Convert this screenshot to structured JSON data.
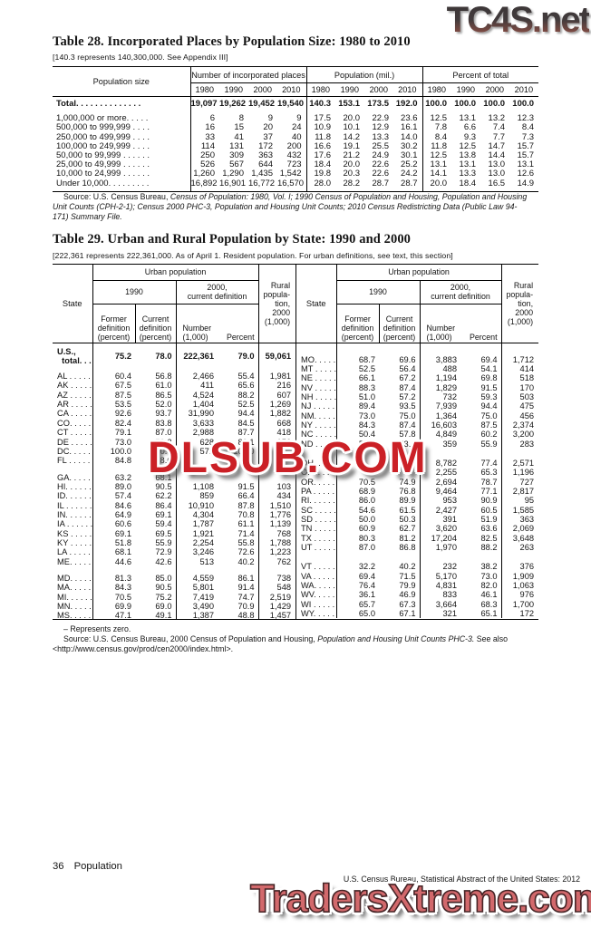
{
  "watermarks": {
    "top_right": "TC4S.net",
    "middle": "DLSUB.COM",
    "bottom": "TradersXtreme.com",
    "middle_color": "#cb2026",
    "bottom_color": "#d2696c"
  },
  "table28": {
    "title": "Table 28. Incorporated Places by Population Size: 1980 to 2010",
    "note": "[140.3 represents 140,300,000. See Appendix III]",
    "row_header": "Population size",
    "groups": [
      "Number of incorporated places",
      "Population (mil.)",
      "Percent of total"
    ],
    "years": [
      "1980",
      "1990",
      "2000",
      "2010"
    ],
    "total_rows": [
      [
        "Total. . . . . . . . . . . . . .",
        "19,097",
        "19,262",
        "19,452",
        "19,540",
        "140.3",
        "153.1",
        "173.5",
        "192.0",
        "100.0",
        "100.0",
        "100.0",
        "100.0"
      ]
    ],
    "rows": [
      [
        "1,000,000 or more. . . . .",
        "6",
        "8",
        "9",
        "9",
        "17.5",
        "20.0",
        "22.9",
        "23.6",
        "12.5",
        "13.1",
        "13.2",
        "12.3"
      ],
      [
        "500,000 to 999,999 . . . .",
        "16",
        "15",
        "20",
        "24",
        "10.9",
        "10.1",
        "12.9",
        "16.1",
        "7.8",
        "6.6",
        "7.4",
        "8.4"
      ],
      [
        "250,000 to 499,999 . . . .",
        "33",
        "41",
        "37",
        "40",
        "11.8",
        "14.2",
        "13.3",
        "14.0",
        "8.4",
        "9.3",
        "7.7",
        "7.3"
      ],
      [
        "100,000 to 249,999 . . . .",
        "114",
        "131",
        "172",
        "200",
        "16.6",
        "19.1",
        "25.5",
        "30.2",
        "11.8",
        "12.5",
        "14.7",
        "15.7"
      ],
      [
        "50,000 to 99,999 . . . . . .",
        "250",
        "309",
        "363",
        "432",
        "17.6",
        "21.2",
        "24.9",
        "30.1",
        "12.5",
        "13.8",
        "14.4",
        "15.7"
      ],
      [
        "25,000 to 49,999 . . . . . .",
        "526",
        "567",
        "644",
        "723",
        "18.4",
        "20.0",
        "22.6",
        "25.2",
        "13.1",
        "13.1",
        "13.0",
        "13.1"
      ],
      [
        "10,000 to 24,999 . . . . . .",
        "1,260",
        "1,290",
        "1,435",
        "1,542",
        "19.8",
        "20.3",
        "22.6",
        "24.2",
        "14.1",
        "13.3",
        "13.0",
        "12.6"
      ],
      [
        "Under 10,000. . . . . . . . .",
        "16,892",
        "16,901",
        "16,772",
        "16,570",
        "28.0",
        "28.2",
        "28.7",
        "28.7",
        "20.0",
        "18.4",
        "16.5",
        "14.9"
      ]
    ],
    "source_prefix": "Source: U.S. Census Bureau, ",
    "source_italic": "Census of Population: 1980, Vol. I; 1990 Census of Population and Housing, Population and Housing Unit Counts (CPH-2-1); Census 2000 PHC-3, Population and Housing Unit Counts; 2010 Census Redistricting Data (Public Law 94-171) Summary File."
  },
  "table29": {
    "title": "Table 29. Urban and Rural Population by State: 1990 and 2000",
    "note": "[222,361 represents 222,361,000. As of April 1. Resident population. For urban definitions, see text, this section]",
    "header": {
      "state": "State",
      "urban": "Urban population",
      "y1990": "1990",
      "y2000": "2000,\ncurrent definition",
      "former": "Former\ndefinition\n(percent)",
      "current": "Current\ndefinition\n(percent)",
      "number": "Number\n(1,000)",
      "percent": "Percent",
      "rural": "Rural\npopula-\ntion,\n2000\n(1,000)"
    },
    "us_total_label": "U.S.,\n  total. . .",
    "us_total": [
      "75.2",
      "78.0",
      "222,361",
      "79.0",
      "59,061"
    ],
    "left_g1": [
      [
        "AL . . . . . .",
        "60.4",
        "56.8",
        "2,466",
        "55.4",
        "1,981"
      ],
      [
        "AK . . . . . .",
        "67.5",
        "61.0",
        "411",
        "65.6",
        "216"
      ],
      [
        "AZ . . . . . .",
        "87.5",
        "86.5",
        "4,524",
        "88.2",
        "607"
      ],
      [
        "AR . . . . . .",
        "53.5",
        "52.0",
        "1,404",
        "52.5",
        "1,269"
      ],
      [
        "CA . . . . . .",
        "92.6",
        "93.7",
        "31,990",
        "94.4",
        "1,882"
      ],
      [
        "CO. . . . . .",
        "82.4",
        "83.8",
        "3,633",
        "84.5",
        "668"
      ],
      [
        "CT . . . . . .",
        "79.1",
        "87.0",
        "2,988",
        "87.7",
        "418"
      ],
      [
        "DE . . . . . .",
        "73.0",
        "79.2",
        "628",
        "80.1",
        "156"
      ],
      [
        "DC. . . . . .",
        "100.0",
        "100.0",
        "572",
        "100.0",
        "–"
      ],
      [
        "FL . . . . . .",
        "84.8",
        "88.0",
        "",
        "",
        ""
      ]
    ],
    "left_g2": [
      [
        "GA. . . . . .",
        "63.2",
        "68.1",
        "",
        "",
        ""
      ],
      [
        "HI. . . . . . .",
        "89.0",
        "90.5",
        "1,108",
        "91.5",
        "103"
      ],
      [
        "ID. . . . . . .",
        "57.4",
        "62.2",
        "859",
        "66.4",
        "434"
      ],
      [
        "IL . . . . . . .",
        "84.6",
        "86.4",
        "10,910",
        "87.8",
        "1,510"
      ],
      [
        "IN. . . . . . .",
        "64.9",
        "69.1",
        "4,304",
        "70.8",
        "1,776"
      ],
      [
        "IA . . . . . .",
        "60.6",
        "59.4",
        "1,787",
        "61.1",
        "1,139"
      ],
      [
        "KS . . . . . .",
        "69.1",
        "69.5",
        "1,921",
        "71.4",
        "768"
      ],
      [
        "KY . . . . . .",
        "51.8",
        "55.9",
        "2,254",
        "55.8",
        "1,788"
      ],
      [
        "LA . . . . . .",
        "68.1",
        "72.9",
        "3,246",
        "72.6",
        "1,223"
      ],
      [
        "ME. . . . . .",
        "44.6",
        "42.6",
        "513",
        "40.2",
        "762"
      ]
    ],
    "left_g3": [
      [
        "MD. . . . . .",
        "81.3",
        "85.0",
        "4,559",
        "86.1",
        "738"
      ],
      [
        "MA. . . . . .",
        "84.3",
        "90.5",
        "5,801",
        "91.4",
        "548"
      ],
      [
        "MI. . . . . . .",
        "70.5",
        "75.2",
        "7,419",
        "74.7",
        "2,519"
      ],
      [
        "MN. . . . . .",
        "69.9",
        "69.0",
        "3,490",
        "70.9",
        "1,429"
      ],
      [
        "MS. . . . . .",
        "47.1",
        "49.1",
        "1,387",
        "48.8",
        "1,457"
      ]
    ],
    "right_g1": [
      [
        "MO. . . . .",
        "68.7",
        "69.6",
        "3,883",
        "69.4",
        "1,712"
      ],
      [
        "MT . . . . .",
        "52.5",
        "56.4",
        "488",
        "54.1",
        "414"
      ],
      [
        "NE . . . . .",
        "66.1",
        "67.2",
        "1,194",
        "69.8",
        "518"
      ],
      [
        "NV . . . . .",
        "88.3",
        "87.4",
        "1,829",
        "91.5",
        "170"
      ],
      [
        "NH . . . . .",
        "51.0",
        "57.2",
        "732",
        "59.3",
        "503"
      ],
      [
        "NJ . . . . .",
        "89.4",
        "93.5",
        "7,939",
        "94.4",
        "475"
      ],
      [
        "NM. . . . .",
        "73.0",
        "75.0",
        "1,364",
        "75.0",
        "456"
      ],
      [
        "NY . . . . .",
        "84.3",
        "87.4",
        "16,603",
        "87.5",
        "2,374"
      ],
      [
        "NC . . . . .",
        "50.4",
        "57.8",
        "4,849",
        "60.2",
        "3,200"
      ],
      [
        "ND . . . . .",
        "53.3",
        "53.4",
        "359",
        "55.9",
        "283"
      ]
    ],
    "right_g2": [
      [
        "OH. . . . .",
        "",
        "",
        "8,782",
        "77.4",
        "2,571"
      ],
      [
        "OK. . . . .",
        "",
        "",
        "2,255",
        "65.3",
        "1,196"
      ],
      [
        "OR. . . . .",
        "70.5",
        "74.9",
        "2,694",
        "78.7",
        "727"
      ],
      [
        "PA . . . . .",
        "68.9",
        "76.8",
        "9,464",
        "77.1",
        "2,817"
      ],
      [
        "RI. . . . . .",
        "86.0",
        "89.9",
        "953",
        "90.9",
        "95"
      ],
      [
        "SC . . . . .",
        "54.6",
        "61.5",
        "2,427",
        "60.5",
        "1,585"
      ],
      [
        "SD . . . . .",
        "50.0",
        "50.3",
        "391",
        "51.9",
        "363"
      ],
      [
        "TN . . . . .",
        "60.9",
        "62.7",
        "3,620",
        "63.6",
        "2,069"
      ],
      [
        "TX . . . . .",
        "80.3",
        "81.2",
        "17,204",
        "82.5",
        "3,648"
      ],
      [
        "UT . . . . .",
        "87.0",
        "86.8",
        "1,970",
        "88.2",
        "263"
      ]
    ],
    "right_g3": [
      [
        "VT . . . . .",
        "32.2",
        "40.2",
        "232",
        "38.2",
        "376"
      ],
      [
        "VA . . . . .",
        "69.4",
        "71.5",
        "5,170",
        "73.0",
        "1,909"
      ],
      [
        "WA. . . . .",
        "76.4",
        "79.9",
        "4,831",
        "82.0",
        "1,063"
      ],
      [
        "WV. . . . .",
        "36.1",
        "46.9",
        "833",
        "46.1",
        "976"
      ],
      [
        "WI . . . . .",
        "65.7",
        "67.3",
        "3,664",
        "68.3",
        "1,700"
      ],
      [
        "WY. . . . .",
        "65.0",
        "67.1",
        "321",
        "65.1",
        "172"
      ]
    ],
    "footnote_zero": "– Represents zero.",
    "source_p1": "Source: U.S. Census Bureau, 2000 Census of Population and Housing, ",
    "source_p2": "Population and Housing Unit Counts PHC-3.",
    "source_p3": " See also <http://www.census.gov/prod/cen2000/index.html>."
  },
  "footer": {
    "page_number": "36",
    "section": "Population",
    "credit": "U.S. Census Bureau, Statistical Abstract of the United States: 2012"
  }
}
